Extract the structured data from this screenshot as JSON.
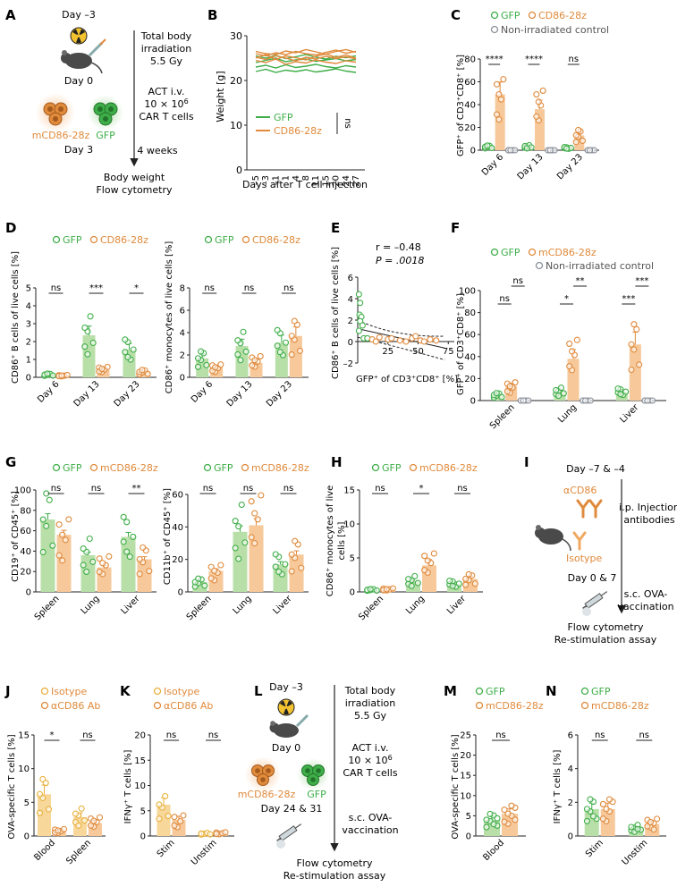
{
  "colors": {
    "gfp": "#3fae49",
    "gfp_fill": "#b9dfa9",
    "car": "#e08a3c",
    "car_fill": "#f6c89a",
    "nonirr": "#8a8f99",
    "axis": "#222222",
    "hbar": "#f7d79a"
  },
  "panels": {
    "A": "A",
    "B": "B",
    "C": "C",
    "D": "D",
    "E": "E",
    "F": "F",
    "G": "G",
    "H": "H",
    "I": "I",
    "J": "J",
    "K": "K",
    "L": "L",
    "M": "M",
    "N": "N"
  },
  "A": {
    "day_m3": "Day –3",
    "day0": "Day 0",
    "day3": "Day 3",
    "tbi1": "Total body",
    "tbi2": "irradiation",
    "tbi3": "5.5 Gy",
    "act1": "ACT i.v.",
    "act2": "10 × 10",
    "act2_sup": "6",
    "act3": "CAR T cells",
    "weeks": "4 weeks",
    "out1": "Body weight",
    "out2": "Flow cytometry",
    "cell_car": "mCD86-28z",
    "cell_gfp": "GFP"
  },
  "B": {
    "ylabel": "Weight [g]",
    "xlabel": "Days after T cell injection",
    "yticks": [
      "0",
      "10",
      "20",
      "30"
    ],
    "xticks": [
      "–5",
      "–3",
      "–1",
      "1",
      "4",
      "8",
      "11",
      "15",
      "20",
      "24",
      "27"
    ],
    "legend_gfp": "GFP",
    "legend_car": "CD86-28z",
    "ns": "ns"
  },
  "C": {
    "legend_gfp": "GFP",
    "legend_car": "CD86-28z",
    "legend_nonirr": "Non-irradiated control",
    "ylabel": "GFP⁺ of CD3⁺CD8⁺ [%]",
    "yticks": [
      "0",
      "20",
      "40",
      "60",
      "80"
    ],
    "groups": [
      "Day 6",
      "Day 13",
      "Day 23"
    ],
    "sig": [
      "****",
      "****",
      "ns"
    ]
  },
  "D1": {
    "legend_gfp": "GFP",
    "legend_car": "CD86-28z",
    "ylabel": "CD86⁺ B cells of live cells [%]",
    "yticks": [
      "0",
      "1",
      "2",
      "3",
      "4",
      "5"
    ],
    "groups": [
      "Day 6",
      "Day 13",
      "Day 23"
    ],
    "sig": [
      "ns",
      "***",
      "*"
    ]
  },
  "D2": {
    "legend_gfp": "GFP",
    "legend_car": "CD86-28z",
    "ylabel": "CD86⁺ monocytes of live cells [%]",
    "yticks": [
      "0",
      "2",
      "4",
      "6",
      "8"
    ],
    "groups": [
      "Day 6",
      "Day 13",
      "Day 23"
    ],
    "sig": [
      "ns",
      "ns",
      "ns"
    ]
  },
  "E": {
    "r": "r = –0.48",
    "p": "P = .0018",
    "ylabel": "CD86⁺ B cells of live cells [%]",
    "xlabel": "GFP⁺ of CD3⁺CD8⁺ [%]",
    "yticks": [
      "6",
      "4",
      "2",
      "0",
      "–2"
    ],
    "xticks": [
      "25",
      "50",
      "75"
    ]
  },
  "F": {
    "legend_gfp": "GFP",
    "legend_car": "mCD86-28z",
    "legend_nonirr": "Non-irradiated control",
    "ylabel": "GFP⁺ of CD3⁺CD8⁺ [%]",
    "yticks": [
      "0",
      "20",
      "40",
      "60",
      "80",
      "100"
    ],
    "groups": [
      "Spleen",
      "Lung",
      "Liver"
    ],
    "sig_a": [
      "ns",
      "*",
      "***"
    ],
    "sig_b": [
      "ns",
      "**",
      "***"
    ]
  },
  "G1": {
    "legend_gfp": "GFP",
    "legend_car": "mCD86-28z",
    "ylabel": "CD19⁺ of CD45⁺ [%]",
    "yticks": [
      "0",
      "20",
      "40",
      "60",
      "80",
      "100"
    ],
    "groups": [
      "Spleen",
      "Lung",
      "Liver"
    ],
    "sig": [
      "ns",
      "ns",
      "**"
    ]
  },
  "G2": {
    "legend_gfp": "GFP",
    "legend_car": "mCD86-28z",
    "ylabel": "CD11b⁺ of CD45⁺ [%]",
    "yticks": [
      "0",
      "20",
      "40",
      "60"
    ],
    "groups": [
      "Spleen",
      "Lung",
      "Liver"
    ],
    "sig": [
      "ns",
      "ns",
      "ns"
    ]
  },
  "H": {
    "legend_gfp": "GFP",
    "legend_car": "mCD86-28z",
    "ylabel1": "CD86⁺ monocytes of live",
    "ylabel2": "cells [%]",
    "yticks": [
      "0",
      "5",
      "10",
      "15"
    ],
    "groups": [
      "Spleen",
      "Lung",
      "Liver"
    ],
    "sig": [
      "ns",
      "*",
      "ns"
    ]
  },
  "I": {
    "days": "Day –7 & –4",
    "acd86": "αCD86",
    "inj1": "i.p. Injection",
    "inj2": "antibodies",
    "iso": "Isotype",
    "day07": "Day 0 & 7",
    "ova1": "s.c. OVA-",
    "ova2": "vaccination",
    "out1": "Flow cytometry",
    "out2": "Re-stimulation assay"
  },
  "J": {
    "legend_iso": "Isotype",
    "legend_ab": "αCD86 Ab",
    "ylabel": "OVA-specific T cells [%]",
    "yticks": [
      "0",
      "5",
      "10",
      "15"
    ],
    "groups": [
      "Blood",
      "Spleen"
    ],
    "sig": [
      "*",
      "ns"
    ]
  },
  "K": {
    "legend_iso": "Isotype",
    "legend_ab": "αCD86 Ab",
    "ylabel": "IFNγ⁺ T cells [%]",
    "yticks": [
      "0",
      "5",
      "10",
      "15",
      "20"
    ],
    "groups": [
      "Stim",
      "Unstim"
    ],
    "sig": [
      "ns",
      "ns"
    ]
  },
  "L": {
    "day_m3": "Day –3",
    "day0": "Day 0",
    "day2431": "Day 24 & 31",
    "tbi1": "Total body",
    "tbi2": "irradiation",
    "tbi3": "5.5 Gy",
    "act1": "ACT i.v.",
    "act2": "10 × 10",
    "act2_sup": "6",
    "act3": "CAR T cells",
    "ova1": "s.c. OVA-",
    "ova2": "vaccination",
    "out1": "Flow cytometry",
    "out2": "Re-stimulation assay",
    "cell_car": "mCD86-28z",
    "cell_gfp": "GFP"
  },
  "M": {
    "legend_gfp": "GFP",
    "legend_car": "mCD86-28z",
    "ylabel": "OVA-specific T cells [%]",
    "yticks": [
      "0",
      "5",
      "10",
      "15",
      "20",
      "25"
    ],
    "groups": [
      "Blood"
    ],
    "sig": [
      "ns"
    ]
  },
  "N": {
    "legend_gfp": "GFP",
    "legend_car": "mCD86-28z",
    "ylabel": "IFNγ⁺ T cells [%]",
    "yticks": [
      "0",
      "2",
      "4",
      "6"
    ],
    "groups": [
      "Stim",
      "Unstim"
    ],
    "sig": [
      "ns",
      "ns"
    ]
  },
  "chart_data": [
    {
      "panel": "B",
      "type": "line",
      "title": "",
      "xlabel": "Days after T cell injection",
      "ylabel": "Weight [g]",
      "ylim": [
        0,
        30
      ],
      "x": [
        -5,
        -3,
        -1,
        1,
        4,
        8,
        11,
        15,
        20,
        24,
        27
      ],
      "series": [
        {
          "name": "GFP",
          "values": [
            [
              24,
              24.5,
              25,
              24.2,
              24.6,
              24.8,
              24.3,
              24.6,
              24.9,
              24.4,
              24.7
            ],
            [
              22,
              22.5,
              21.8,
              22.3,
              22,
              22.4,
              21.9,
              22.2,
              22.6,
              22.1,
              21.8
            ],
            [
              25.5,
              25,
              25.6,
              24.9,
              25.3,
              25.8,
              25.2,
              24.8,
              25.4,
              25.1,
              25.5
            ],
            [
              23,
              23.4,
              22.8,
              23.5,
              22.9,
              23.2,
              23.6,
              23.1,
              22.8,
              23.3,
              23
            ]
          ]
        },
        {
          "name": "CD86-28z",
          "values": [
            [
              26,
              25.5,
              26.2,
              25.8,
              26.5,
              26,
              25.7,
              26.3,
              26.8,
              26.1,
              26.5
            ],
            [
              25,
              25.8,
              24.7,
              25.5,
              25.1,
              24.6,
              25.4,
              25.9,
              25.2,
              25.7,
              25
            ],
            [
              24.5,
              24,
              24.8,
              23.6,
              24.2,
              23.9,
              24.6,
              24.1,
              23.8,
              24.4,
              24.1
            ],
            [
              26.5,
              26,
              25.8,
              26.6,
              26.2,
              26.9,
              26.4,
              25.9,
              26.5,
              26.9,
              26.3
            ],
            [
              25.2,
              24.7,
              25.5,
              25,
              24.4,
              25.2,
              24.8,
              25.4,
              24.9,
              25.3,
              24.8
            ]
          ]
        }
      ]
    },
    {
      "panel": "C",
      "type": "bar",
      "ylabel": "GFP⁺ of CD3⁺CD8⁺ [%]",
      "ylim": [
        0,
        80
      ],
      "categories": [
        "Day 6",
        "Day 13",
        "Day 23"
      ],
      "series": [
        {
          "name": "GFP",
          "values": [
            3,
            3,
            2
          ]
        },
        {
          "name": "CD86-28z",
          "values": [
            49,
            36,
            13
          ]
        },
        {
          "name": "Non-irradiated control",
          "values": [
            0,
            0,
            0
          ]
        }
      ]
    },
    {
      "panel": "D1",
      "type": "bar",
      "ylabel": "CD86⁺ B cells of live cells [%]",
      "ylim": [
        0,
        5
      ],
      "categories": [
        "Day 6",
        "Day 13",
        "Day 23"
      ],
      "series": [
        {
          "name": "GFP",
          "values": [
            0.15,
            2.35,
            1.55
          ]
        },
        {
          "name": "CD86-28z",
          "values": [
            0.1,
            0.4,
            0.3
          ]
        }
      ]
    },
    {
      "panel": "D2",
      "type": "bar",
      "ylabel": "CD86⁺ monocytes of live cells [%]",
      "ylim": [
        0,
        8
      ],
      "categories": [
        "Day 6",
        "Day 13",
        "Day 23"
      ],
      "series": [
        {
          "name": "GFP",
          "values": [
            1.7,
            2.8,
            3.1
          ]
        },
        {
          "name": "CD86-28z",
          "values": [
            0.9,
            1.3,
            3.7
          ]
        }
      ]
    },
    {
      "panel": "E",
      "type": "scatter",
      "xlabel": "GFP⁺ of CD3⁺CD8⁺ [%]",
      "ylabel": "CD86⁺ B cells of live cells [%]",
      "xlim": [
        0,
        80
      ],
      "ylim": [
        -2,
        6
      ],
      "points": [
        [
          1,
          4.4
        ],
        [
          2,
          3.6
        ],
        [
          1.5,
          2.5
        ],
        [
          3,
          2.3
        ],
        [
          2,
          1.9
        ],
        [
          4,
          1.5
        ],
        [
          1,
          1
        ],
        [
          5,
          0.3
        ],
        [
          8,
          0.3
        ],
        [
          12,
          0.2
        ],
        [
          15,
          0
        ],
        [
          25,
          0.2
        ],
        [
          35,
          0.1
        ],
        [
          45,
          0.3
        ],
        [
          52,
          0.1
        ],
        [
          60,
          0.2
        ],
        [
          28,
          0.3
        ],
        [
          40,
          0
        ],
        [
          55,
          0
        ],
        [
          65,
          0.1
        ],
        [
          48,
          0.5
        ],
        [
          18,
          0.4
        ]
      ],
      "fit": {
        "r": -0.48,
        "p": 0.0018
      }
    },
    {
      "panel": "F",
      "type": "bar",
      "ylabel": "GFP⁺ of CD3⁺CD8⁺ [%]",
      "ylim": [
        0,
        100
      ],
      "categories": [
        "Spleen",
        "Lung",
        "Liver"
      ],
      "series": [
        {
          "name": "GFP",
          "values": [
            5,
            8,
            8
          ]
        },
        {
          "name": "mCD86-28z",
          "values": [
            13,
            38,
            51
          ]
        },
        {
          "name": "Non-irradiated control",
          "values": [
            0,
            0,
            0
          ]
        }
      ]
    },
    {
      "panel": "G1",
      "type": "bar",
      "ylabel": "CD19⁺ of CD45⁺ [%]",
      "ylim": [
        0,
        100
      ],
      "categories": [
        "Spleen",
        "Lung",
        "Liver"
      ],
      "series": [
        {
          "name": "GFP",
          "values": [
            71,
            36,
            54
          ]
        },
        {
          "name": "mCD86-28z",
          "values": [
            56,
            24,
            32
          ]
        }
      ]
    },
    {
      "panel": "G2",
      "type": "bar",
      "ylabel": "CD11b⁺ of CD45⁺ [%]",
      "ylim": [
        0,
        60
      ],
      "categories": [
        "Spleen",
        "Lung",
        "Liver"
      ],
      "series": [
        {
          "name": "GFP",
          "values": [
            6,
            37,
            17
          ]
        },
        {
          "name": "mCD86-28z",
          "values": [
            13,
            41,
            23
          ]
        }
      ]
    },
    {
      "panel": "H",
      "type": "bar",
      "ylabel": "CD86⁺ monocytes of live cells [%]",
      "ylim": [
        0,
        15
      ],
      "categories": [
        "Spleen",
        "Lung",
        "Liver"
      ],
      "series": [
        {
          "name": "GFP",
          "values": [
            0.3,
            1.6,
            1.2
          ]
        },
        {
          "name": "mCD86-28z",
          "values": [
            0.4,
            3.9,
            1.9
          ]
        }
      ]
    },
    {
      "panel": "J",
      "type": "bar",
      "ylabel": "OVA-specific T cells [%]",
      "ylim": [
        0,
        15
      ],
      "categories": [
        "Blood",
        "Spleen"
      ],
      "series": [
        {
          "name": "Isotype",
          "values": [
            6.2,
            2.8
          ]
        },
        {
          "name": "αCD86 Ab",
          "values": [
            0.8,
            1.9
          ]
        }
      ]
    },
    {
      "panel": "K",
      "type": "bar",
      "ylabel": "IFNγ⁺ T cells [%]",
      "ylim": [
        0,
        20
      ],
      "categories": [
        "Stim",
        "Unstim"
      ],
      "series": [
        {
          "name": "Isotype",
          "values": [
            6.2,
            0.4
          ]
        },
        {
          "name": "αCD86 Ab",
          "values": [
            3.2,
            0.5
          ]
        }
      ]
    },
    {
      "panel": "M",
      "type": "bar",
      "ylabel": "OVA-specific T cells [%]",
      "ylim": [
        0,
        25
      ],
      "categories": [
        "Blood"
      ],
      "series": [
        {
          "name": "GFP",
          "values": [
            4
          ]
        },
        {
          "name": "mCD86-28z",
          "values": [
            5.5
          ]
        }
      ]
    },
    {
      "panel": "N",
      "type": "bar",
      "ylabel": "IFNγ⁺ T cells [%]",
      "ylim": [
        0,
        6
      ],
      "categories": [
        "Stim",
        "Unstim"
      ],
      "series": [
        {
          "name": "GFP",
          "values": [
            1.6,
            0.45
          ]
        },
        {
          "name": "mCD86-28z",
          "values": [
            1.6,
            0.7
          ]
        }
      ]
    }
  ]
}
